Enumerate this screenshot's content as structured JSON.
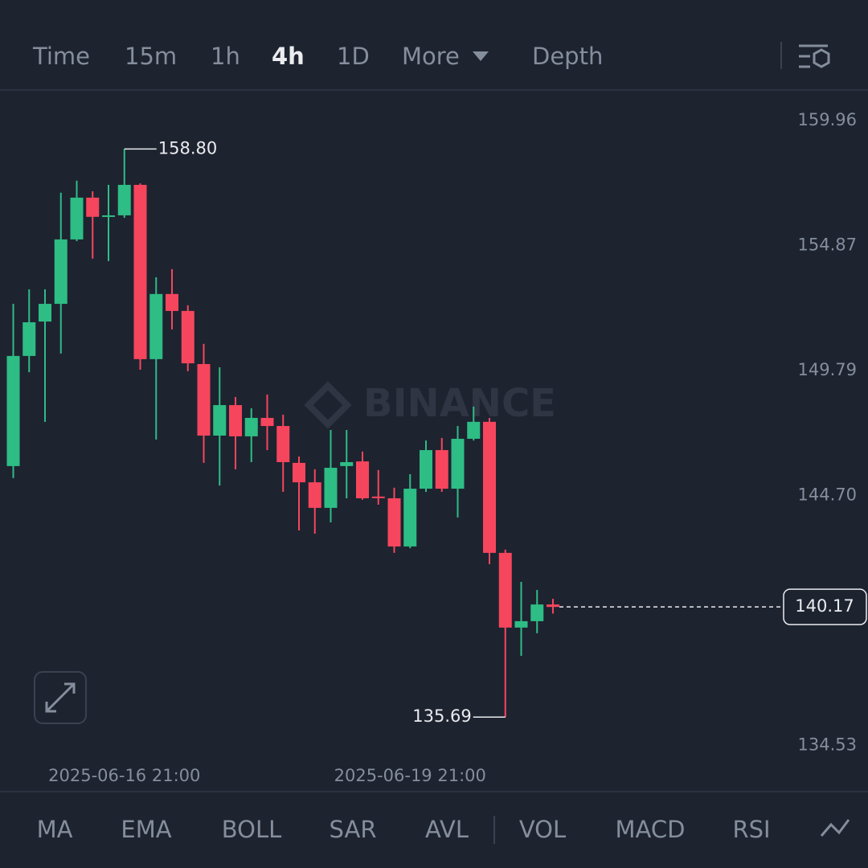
{
  "header": {
    "tabs": [
      "Time",
      "15m",
      "1h",
      "4h",
      "1D",
      "More",
      "Depth"
    ],
    "active_tab": 3
  },
  "chart_data": {
    "type": "candlestick",
    "watermark": "BINANCE",
    "categories": [
      null,
      null,
      null,
      null,
      null,
      null,
      null,
      "2025-06-16 21:00",
      null,
      null,
      null,
      null,
      null,
      null,
      null,
      null,
      null,
      null,
      null,
      null,
      null,
      null,
      null,
      null,
      null,
      "2025-06-19 21:00",
      null,
      null,
      null,
      null,
      null,
      null,
      null,
      null,
      null
    ],
    "open": [
      145.9,
      150.38,
      151.78,
      152.5,
      155.12,
      156.82,
      156.04,
      156.1,
      157.34,
      150.25,
      152.9,
      152.21,
      150.05,
      147.14,
      148.38,
      147.11,
      147.86,
      147.53,
      146.03,
      145.24,
      144.2,
      145.9,
      146.09,
      144.66,
      144.59,
      142.63,
      144.98,
      146.55,
      144.98,
      147.01,
      147.7,
      142.37,
      139.33,
      139.59,
      140.27
    ],
    "high": [
      152.5,
      153.09,
      153.09,
      157.02,
      157.51,
      157.08,
      157.34,
      158.8,
      157.4,
      153.58,
      153.91,
      152.44,
      150.87,
      149.92,
      148.71,
      148.25,
      148.81,
      147.99,
      146.29,
      145.77,
      147.37,
      147.37,
      146.49,
      145.74,
      145.02,
      145.57,
      146.94,
      147.04,
      147.53,
      148.32,
      147.86,
      142.5,
      141.19,
      140.86,
      140.5
    ],
    "low": [
      145.41,
      149.72,
      147.7,
      150.48,
      155.05,
      154.34,
      154.24,
      156.0,
      149.82,
      146.98,
      151.46,
      149.76,
      146.03,
      145.11,
      145.77,
      146.06,
      146.55,
      144.85,
      143.28,
      143.15,
      143.61,
      144.59,
      144.53,
      144.33,
      142.37,
      142.56,
      144.85,
      144.85,
      143.81,
      146.94,
      141.91,
      135.69,
      138.18,
      139.1,
      139.9
    ],
    "close": [
      150.38,
      151.75,
      152.5,
      155.12,
      156.82,
      156.04,
      156.1,
      157.34,
      150.25,
      152.9,
      152.21,
      150.08,
      147.14,
      148.38,
      147.11,
      147.86,
      147.53,
      146.06,
      145.24,
      144.2,
      145.83,
      146.06,
      144.59,
      144.62,
      142.63,
      144.98,
      146.55,
      144.98,
      147.01,
      147.7,
      142.37,
      139.33,
      139.59,
      140.27,
      140.17
    ],
    "up_color": "#2ebd85",
    "down_color": "#f6465d",
    "ylim": [
      133.8,
      161.1
    ],
    "yticks": [
      159.96,
      154.87,
      149.79,
      {
        "value": 144.7,
        "label": "144.70"
      },
      134.53
    ],
    "grid": false,
    "marker_labels": {
      "max": {
        "value": 158.8,
        "label": "158.80"
      },
      "min": {
        "value": 135.69,
        "label": "135.69"
      },
      "last": {
        "value": 140.17,
        "label": "140.17"
      }
    }
  },
  "footer": {
    "indicators": [
      "MA",
      "EMA",
      "BOLL",
      "SAR",
      "AVL",
      "VOL",
      "MACD",
      "RSI"
    ]
  }
}
